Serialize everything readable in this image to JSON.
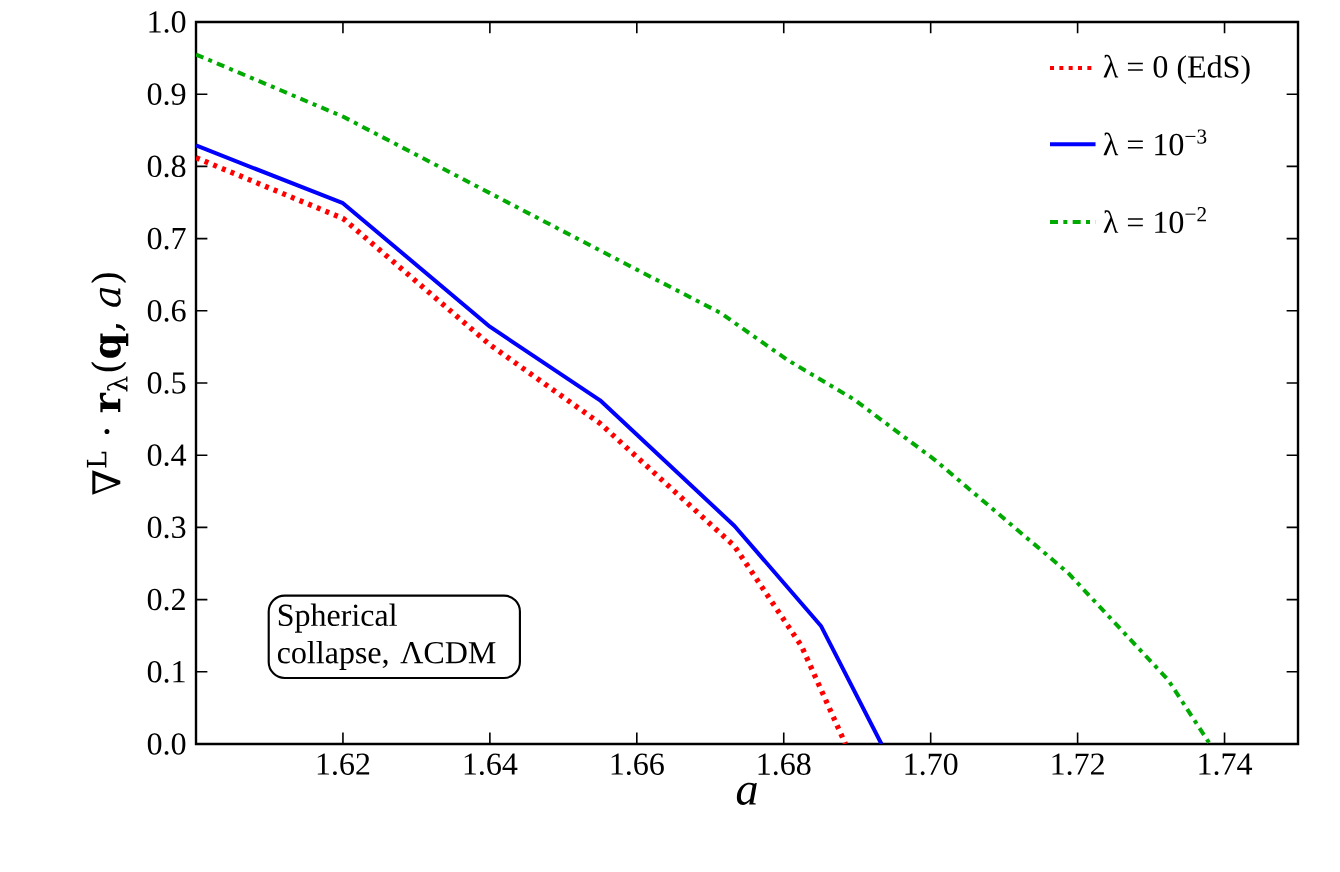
{
  "chart_data": {
    "type": "line",
    "xlabel": "a",
    "ylabel": "∇$^{L}$ · **r**$_{λ}$(**q**, *a*)",
    "x": [
      1.6,
      1.62,
      1.64,
      1.655,
      1.6733,
      1.6824,
      1.6884
    ],
    "series": [
      {
        "name": "λ = 0 (EdS)",
        "color": "#ff0000",
        "line_style": "dotted",
        "values": [
          0.812,
          0.728,
          0.553,
          0.444,
          0.274,
          0.136,
          0.0
        ]
      },
      {
        "name": "λ = 10$^{−3}$",
        "color": "#0000ff",
        "line_style": "solid",
        "x": [
          1.6,
          1.62,
          1.64,
          1.655,
          1.6733,
          1.6851,
          1.6933
        ],
        "values": [
          0.829,
          0.749,
          0.578,
          0.476,
          0.302,
          0.163,
          0.0
        ]
      },
      {
        "name": "λ = 10$^{−2}$",
        "color": "#00aa00",
        "line_style": "dashdot",
        "x": [
          1.6,
          1.62,
          1.64,
          1.66,
          1.6714,
          1.6805,
          1.6896,
          1.7005,
          1.7187,
          1.7323,
          1.738
        ],
        "values": [
          0.955,
          0.869,
          0.763,
          0.657,
          0.597,
          0.532,
          0.477,
          0.394,
          0.237,
          0.089,
          0.0
        ]
      }
    ],
    "xlim": [
      1.6,
      1.75
    ],
    "ylim": [
      0,
      1
    ],
    "xticks": [
      1.62,
      1.64,
      1.66,
      1.68,
      {
        "value": 1.7,
        "label": "1.70"
      },
      1.72,
      1.74
    ],
    "yticks": [
      {
        "value": 0,
        "label": "0.0"
      },
      0.1,
      0.2,
      0.3,
      0.4,
      0.5,
      0.6,
      0.7,
      0.8,
      0.9,
      {
        "value": 1,
        "label": "1.0"
      }
    ],
    "legend": "top right",
    "grid": false,
    "marker": "none",
    "annotations": [
      "Spherical collapse, ΛCDM"
    ]
  }
}
